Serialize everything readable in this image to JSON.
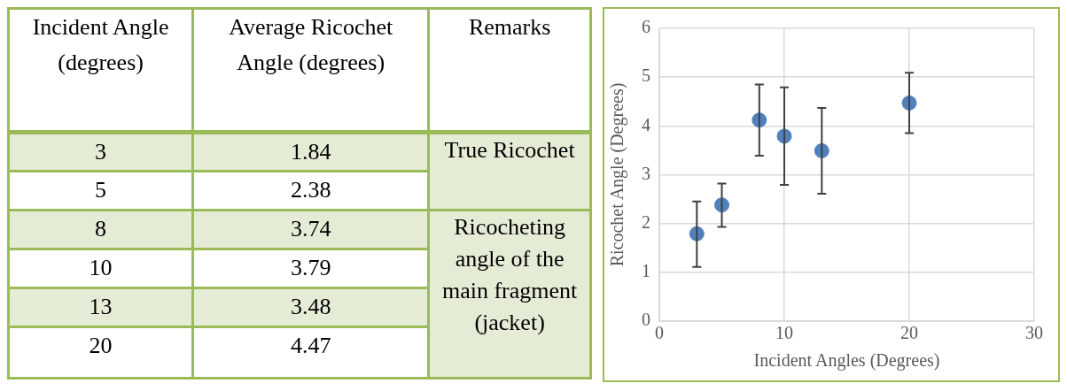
{
  "chart_data": [
    {
      "type": "other",
      "categories": [
        "Incident Angle (degrees)",
        "Average Ricochet Angle (degrees)",
        "Remarks"
      ],
      "annotations": [
        "3",
        "1.84",
        "5",
        "2.38",
        "8",
        "3.74",
        "10",
        "3.79",
        "13",
        "3.48",
        "20",
        "4.47",
        "True Ricochet",
        "Ricocheting angle of the main fragment (jacket)"
      ]
    },
    {
      "type": "scatter",
      "xlabel": "Incident Angles (Degrees)",
      "ylabel": "Ricochet Angle (Degrees)",
      "x": [
        3,
        5,
        8,
        10,
        13,
        20
      ],
      "values": [
        1.79,
        2.38,
        4.12,
        3.79,
        3.49,
        4.47
      ],
      "errors": [
        [
          1.11,
          2.45
        ],
        [
          1.93,
          2.82
        ],
        [
          3.39,
          4.85
        ],
        [
          2.79,
          4.79
        ],
        [
          2.61,
          4.37
        ],
        [
          3.85,
          5.09
        ]
      ],
      "color": "#4f81bd",
      "marker": "circle",
      "xlim": [
        0,
        30
      ],
      "xticks": [
        0,
        10,
        20,
        30
      ],
      "ylim": [
        0,
        6
      ],
      "yticks": [
        0,
        1,
        2,
        3,
        4,
        5,
        6
      ],
      "grid": true,
      "legend": false
    }
  ]
}
